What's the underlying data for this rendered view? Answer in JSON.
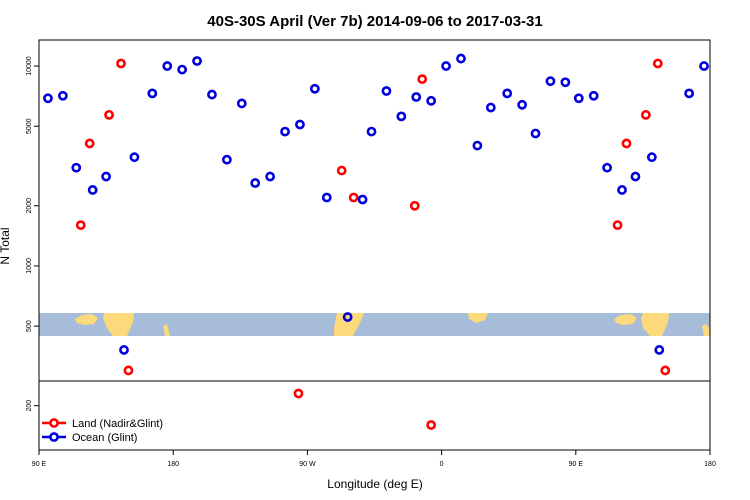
{
  "chart_data": {
    "type": "scatter",
    "title": "40S-30S April (Ver 7b)   2014-09-06 to 2017-03-31",
    "xlabel": "Longitude (deg E)",
    "ylabel": "N Total",
    "x_ticks": [
      {
        "value": 90,
        "label": "90 E"
      },
      {
        "value": 180,
        "label": "180"
      },
      {
        "value": 270,
        "label": "90 W"
      },
      {
        "value": 360,
        "label": "0"
      },
      {
        "value": 450,
        "label": "90 E"
      },
      {
        "value": 540,
        "label": "180"
      }
    ],
    "y_ticks": [
      {
        "value": 200,
        "label": "200"
      },
      {
        "value": 500,
        "label": "500"
      },
      {
        "value": 1000,
        "label": "1000"
      },
      {
        "value": 2000,
        "label": "2000"
      },
      {
        "value": 5000,
        "label": "5000"
      },
      {
        "value": 10000,
        "label": "10000"
      }
    ],
    "xlim": [
      90,
      540
    ],
    "ylim": [
      120,
      13500
    ],
    "y_scale": "log",
    "grid": false,
    "legend_position": "bottom-left",
    "colors": {
      "land": "#ff0000",
      "ocean": "#0000dd",
      "map_water": "#a7bcd8",
      "map_land": "#fcd97a"
    },
    "series": [
      {
        "name": "Land (Nadir&Glint)",
        "color": "#ff0000",
        "points": [
          [
            118,
            1600
          ],
          [
            124,
            4100
          ],
          [
            137,
            5700
          ],
          [
            145,
            10300
          ],
          [
            150,
            300
          ],
          [
            264,
            230
          ],
          [
            293,
            3000
          ],
          [
            301,
            2200
          ],
          [
            342,
            2000
          ],
          [
            347,
            8600
          ],
          [
            353,
            160
          ],
          [
            478,
            1600
          ],
          [
            484,
            4100
          ],
          [
            497,
            5700
          ],
          [
            505,
            10300
          ],
          [
            510,
            300
          ]
        ]
      },
      {
        "name": "Ocean (Glint)",
        "color": "#0000dd",
        "points": [
          [
            96,
            6900
          ],
          [
            106,
            7100
          ],
          [
            115,
            3100
          ],
          [
            126,
            2400
          ],
          [
            135,
            2800
          ],
          [
            147,
            380
          ],
          [
            154,
            3500
          ],
          [
            166,
            7300
          ],
          [
            176,
            10000
          ],
          [
            186,
            9600
          ],
          [
            196,
            10600
          ],
          [
            206,
            7200
          ],
          [
            216,
            3400
          ],
          [
            226,
            6500
          ],
          [
            235,
            2600
          ],
          [
            245,
            2800
          ],
          [
            255,
            4700
          ],
          [
            265,
            5100
          ],
          [
            275,
            7700
          ],
          [
            283,
            2200
          ],
          [
            297,
            555
          ],
          [
            307,
            2150
          ],
          [
            313,
            4700
          ],
          [
            323,
            7500
          ],
          [
            333,
            5600
          ],
          [
            343,
            7000
          ],
          [
            353,
            6700
          ],
          [
            363,
            10000
          ],
          [
            373,
            10900
          ],
          [
            384,
            4000
          ],
          [
            393,
            6200
          ],
          [
            404,
            7300
          ],
          [
            414,
            6400
          ],
          [
            423,
            4600
          ],
          [
            433,
            8400
          ],
          [
            443,
            8300
          ],
          [
            452,
            6900
          ],
          [
            462,
            7100
          ],
          [
            471,
            3100
          ],
          [
            481,
            2400
          ],
          [
            490,
            2800
          ],
          [
            501,
            3500
          ],
          [
            506,
            380
          ],
          [
            526,
            7300
          ],
          [
            536,
            10000
          ]
        ]
      }
    ]
  }
}
